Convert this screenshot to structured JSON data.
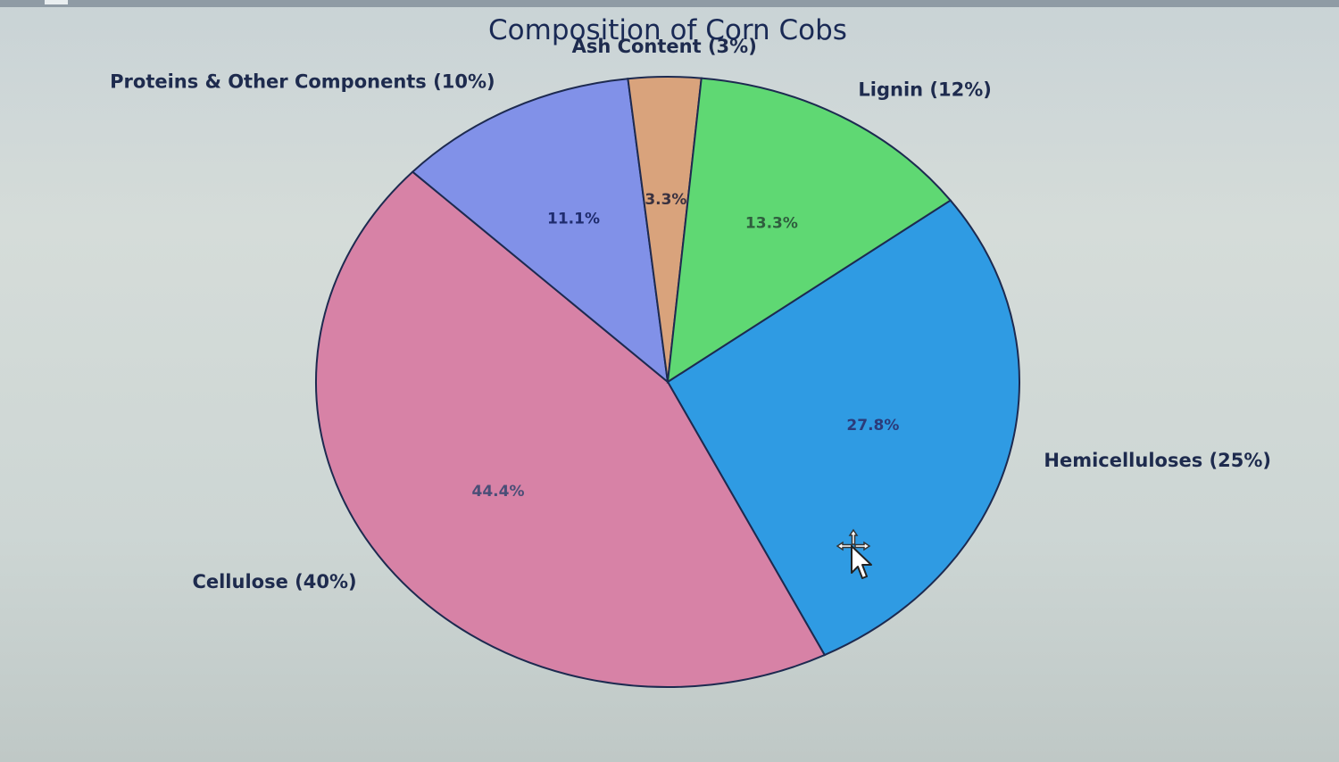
{
  "chart_data": {
    "type": "pie",
    "title": "Composition of Corn Cobs",
    "slices": [
      {
        "label": "Hemicelluloses (25%)",
        "value": 25,
        "pct_label": "27.8%",
        "color": "#2f9be3",
        "pct_color": "#2b3b7a"
      },
      {
        "label": "Cellulose (40%)",
        "value": 40,
        "pct_label": "44.4%",
        "color": "#d782a6",
        "pct_color": "#4a4e77"
      },
      {
        "label": "Proteins & Other Components (10%)",
        "value": 10,
        "pct_label": "11.1%",
        "color": "#8191e8",
        "pct_color": "#1f2c6e"
      },
      {
        "label": "Ash Content (3%)",
        "value": 3,
        "pct_label": "3.3%",
        "color": "#d9a37c",
        "pct_color": "#3a3240"
      },
      {
        "label": "Lignin (12%)",
        "value": 12,
        "pct_label": "13.3%",
        "color": "#5fd873",
        "pct_color": "#2f5e3e"
      }
    ]
  }
}
